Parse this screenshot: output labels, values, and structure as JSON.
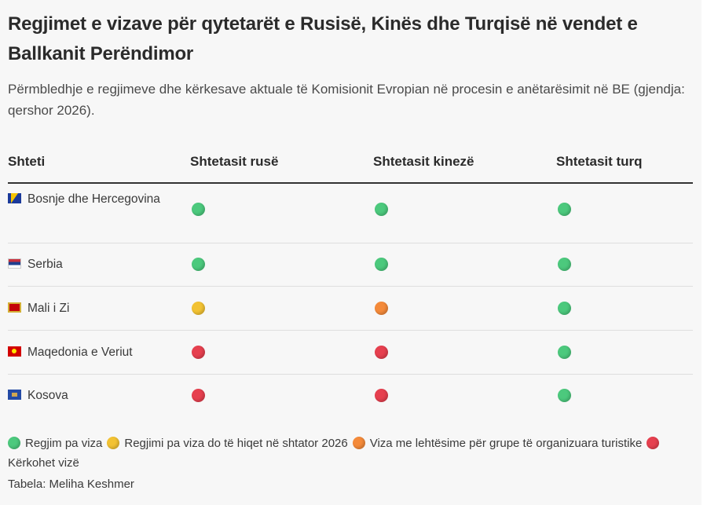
{
  "title": "Regjimet e vizave për qytetarët e Rusisë, Kinës dhe Turqisë në vendet e Ballkanit Perëndimor",
  "subtitle": "Përmbledhje e regjimeve dhe kërkesave aktuale të Komisionit Evropian në procesin e anëtarësimit në BE (gjendja: qershor 2026).",
  "colors": {
    "green": "#4cc97d",
    "yellow": "#f2c233",
    "orange": "#f48a3a",
    "red": "#e6404f"
  },
  "chart_data": {
    "type": "table",
    "columns": [
      "Shteti",
      "Shtetasit rusë",
      "Shtetasit kinezë",
      "Shtetasit turq"
    ],
    "rows": [
      {
        "country": "Bosnje dhe Hercegovina",
        "flag": "bosnia-flag-icon",
        "values": [
          "green",
          "green",
          "green"
        ]
      },
      {
        "country": "Serbia",
        "flag": "serbia-flag-icon",
        "values": [
          "green",
          "green",
          "green"
        ]
      },
      {
        "country": "Mali i Zi",
        "flag": "montenegro-flag-icon",
        "values": [
          "yellow",
          "orange",
          "green"
        ]
      },
      {
        "country": "Maqedonia e Veriut",
        "flag": "north-macedonia-flag-icon",
        "values": [
          "red",
          "red",
          "green"
        ]
      },
      {
        "country": "Kosova",
        "flag": "kosovo-flag-icon",
        "values": [
          "red",
          "red",
          "green"
        ]
      }
    ],
    "legend": [
      {
        "color": "green",
        "label": "Regjim pa viza"
      },
      {
        "color": "yellow",
        "label": "Regjimi pa viza do të hiqet në shtator 2026"
      },
      {
        "color": "orange",
        "label": "Viza me lehtësime për grupe të organizuara turistike"
      },
      {
        "color": "red",
        "label": "Kërkohet vizë"
      }
    ]
  },
  "source": "Tabela: Meliha Keshmer"
}
